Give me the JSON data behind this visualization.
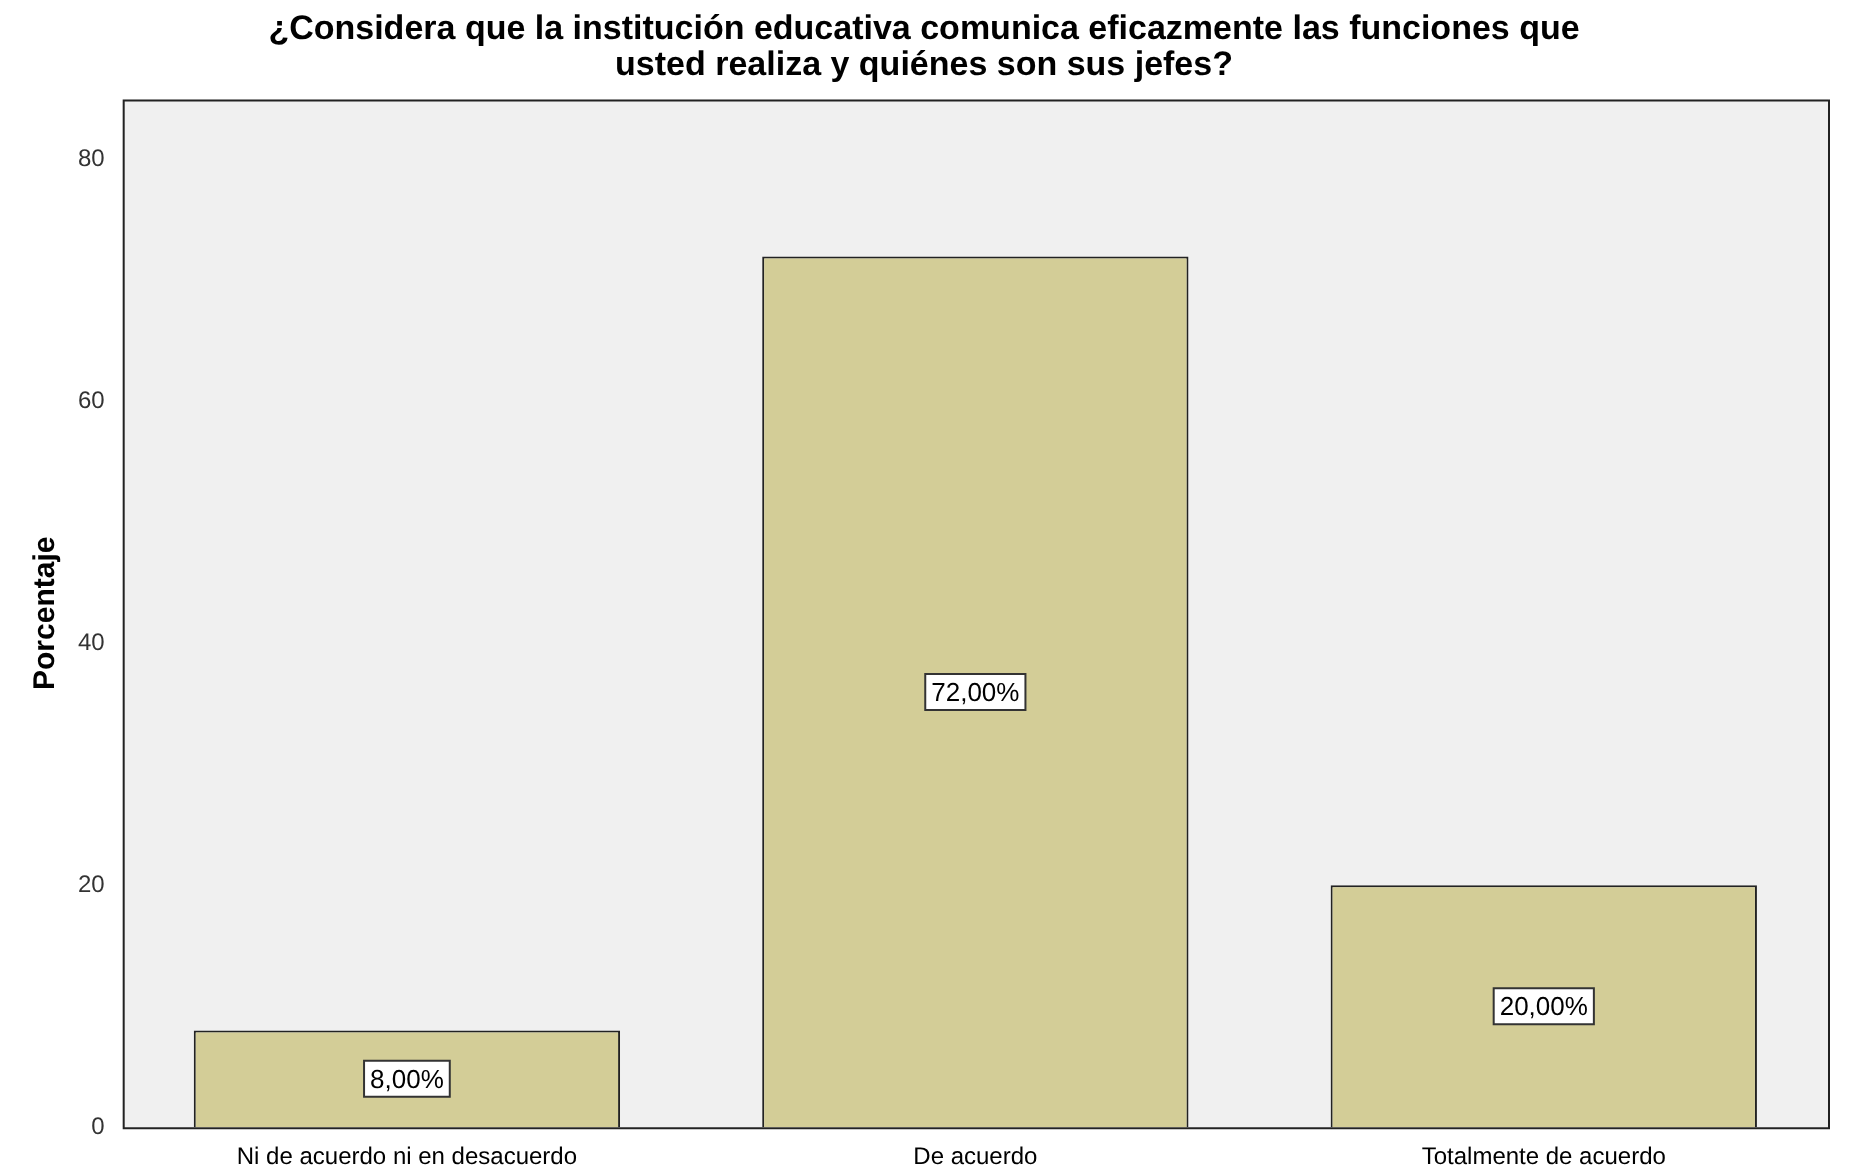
{
  "chart_data": {
    "type": "bar",
    "title": "¿Considera que la institución educativa comunica eficazmente las funciones que\nusted realiza y quiénes son sus jefes?",
    "ylabel": "Porcentaje",
    "categories": [
      "Ni de acuerdo ni en desacuerdo",
      "De acuerdo",
      "Totalmente de acuerdo"
    ],
    "values": [
      8,
      72,
      20
    ],
    "color": "#d3cd97",
    "value_labels": [
      "8,00%",
      "72,00%",
      "20,00%"
    ],
    "ylim": [
      0,
      85
    ],
    "yticks": [
      0,
      20,
      40,
      60,
      80
    ],
    "grid": false,
    "legend": false
  }
}
